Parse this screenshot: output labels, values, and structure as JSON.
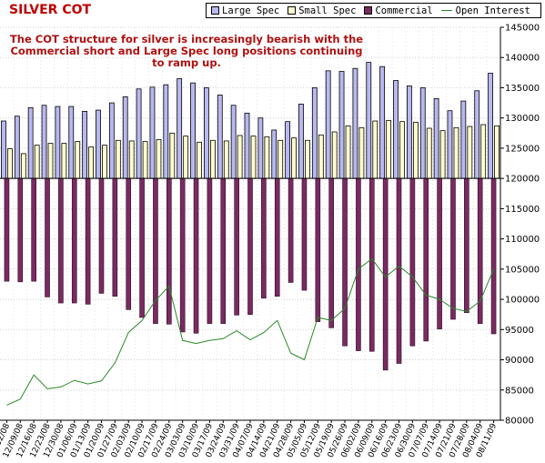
{
  "title": "SILVER COT",
  "annotation_lines": [
    "The COT structure for silver is increasingly bearish with the",
    "Commercial short and Large Spec long positions continuing",
    "to ramp up."
  ],
  "legend": {
    "large_spec": "Large Spec",
    "small_spec": "Small Spec",
    "commercial": "Commercial",
    "open_interest": "Open Interest"
  },
  "colors": {
    "large_spec": "#b8b8f0",
    "small_spec": "#fffbd0",
    "commercial": "#7a2a62",
    "open_interest": "#2a8a2a",
    "title": "#c00000",
    "annotation": "#b01010"
  },
  "chart_data": {
    "type": "bar",
    "x": [
      "12/02/08",
      "12/09/08",
      "12/16/08",
      "12/23/08",
      "12/30/08",
      "01/06/09",
      "01/13/09",
      "01/20/09",
      "01/27/09",
      "02/03/09",
      "02/10/09",
      "02/17/09",
      "02/24/09",
      "03/03/09",
      "03/10/09",
      "03/17/09",
      "03/24/09",
      "03/31/09",
      "04/07/09",
      "04/14/09",
      "04/21/09",
      "04/28/09",
      "05/05/09",
      "05/12/09",
      "05/19/09",
      "05/26/09",
      "06/02/09",
      "06/09/09",
      "06/16/09",
      "06/23/09",
      "06/30/09",
      "07/07/09",
      "07/14/09",
      "07/21/09",
      "07/28/09",
      "08/04/09",
      "08/11/09"
    ],
    "y_ticks": [
      "145000",
      "140000",
      "135000",
      "130000",
      "125000",
      "120000",
      "115000",
      "110000",
      "105000",
      "100000",
      "95000",
      "90000",
      "85000",
      "80000"
    ],
    "ylim": [
      80000,
      145000
    ],
    "baseline": 120000,
    "grid": true,
    "legend_position": "top-right",
    "series": [
      {
        "name": "Large Spec",
        "type": "bar",
        "values": [
          129500,
          130300,
          131700,
          132100,
          131900,
          131900,
          131100,
          131300,
          132500,
          133500,
          134800,
          135100,
          135500,
          136500,
          135800,
          135000,
          133800,
          132100,
          130800,
          130000,
          128000,
          129400,
          132300,
          135000,
          137800,
          137700,
          138200,
          139200,
          138500,
          136200,
          135300,
          135000,
          133200,
          131200,
          132800,
          134500,
          137400
        ]
      },
      {
        "name": "Small Spec",
        "type": "bar",
        "values": [
          124900,
          124100,
          125500,
          125800,
          125800,
          126100,
          125200,
          125500,
          126300,
          126200,
          126100,
          126400,
          127500,
          127000,
          126000,
          126300,
          126200,
          127100,
          127000,
          126900,
          126300,
          126700,
          126300,
          127200,
          127700,
          128700,
          128400,
          129500,
          129600,
          129400,
          129300,
          128300,
          127900,
          128400,
          128600,
          128900,
          128700
        ]
      },
      {
        "name": "Commercial",
        "type": "bar",
        "values": [
          103000,
          102900,
          103000,
          100400,
          99400,
          99400,
          99200,
          101000,
          100500,
          98300,
          97000,
          96000,
          95900,
          94600,
          94400,
          96000,
          96000,
          97400,
          97500,
          100200,
          100500,
          102800,
          101500,
          96300,
          95300,
          92300,
          91500,
          91400,
          88300,
          89400,
          92300,
          93100,
          95100,
          96700,
          97800,
          96000,
          94300
        ]
      },
      {
        "name": "Open Interest",
        "type": "line",
        "axis": "open_interest",
        "values": [
          82500,
          83500,
          87500,
          85200,
          85500,
          86600,
          86000,
          86500,
          89500,
          94500,
          96500,
          99800,
          102200,
          93200,
          92700,
          93200,
          93500,
          94800,
          93300,
          94500,
          96500,
          91100,
          90000,
          97000,
          96500,
          98500,
          105000,
          106700,
          103700,
          105500,
          103700,
          100700,
          100000,
          98500,
          98000,
          99700,
          105000
        ]
      }
    ]
  }
}
